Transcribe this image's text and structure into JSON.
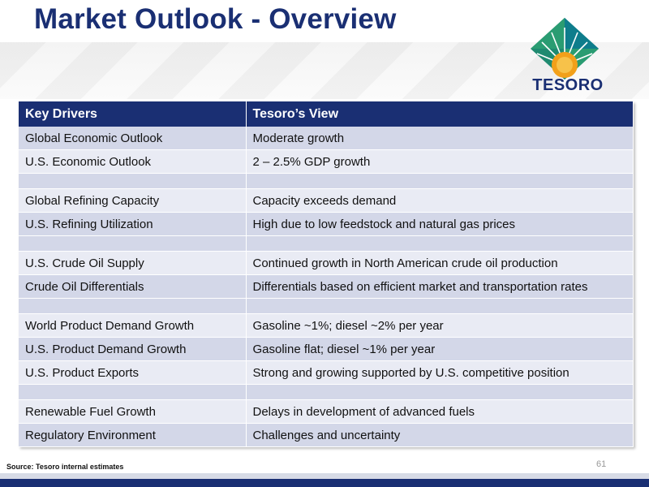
{
  "header": {
    "title": "Market Outlook - Overview",
    "logo_text": "TESORO"
  },
  "colors": {
    "brand_navy": "#1a2f73",
    "logo_green": "#1f8a70",
    "logo_teal": "#0e7d8c",
    "logo_sun": "#f2a01a"
  },
  "table": {
    "headers": [
      "Key Drivers",
      "Tesoro’s View"
    ],
    "rows": [
      {
        "driver": "Global Economic Outlook",
        "view": "Moderate growth"
      },
      {
        "driver": "U.S. Economic Outlook",
        "view": "2 – 2.5% GDP growth"
      },
      {
        "driver": "",
        "view": ""
      },
      {
        "driver": "Global Refining Capacity",
        "view": "Capacity exceeds demand"
      },
      {
        "driver": "U.S. Refining Utilization",
        "view": "High due to low feedstock and natural gas prices"
      },
      {
        "driver": "",
        "view": ""
      },
      {
        "driver": "U.S. Crude Oil Supply",
        "view": "Continued growth in North American crude oil production"
      },
      {
        "driver": "Crude Oil Differentials",
        "view": "Differentials based on efficient market and transportation rates"
      },
      {
        "driver": "",
        "view": ""
      },
      {
        "driver": "World Product Demand Growth",
        "view": "Gasoline ~1%; diesel ~2% per year"
      },
      {
        "driver": "U.S. Product Demand Growth",
        "view": "Gasoline flat; diesel ~1% per year"
      },
      {
        "driver": "U.S. Product Exports",
        "view": "Strong and growing supported by U.S. competitive position"
      },
      {
        "driver": "",
        "view": ""
      },
      {
        "driver": "Renewable Fuel Growth",
        "view": "Delays in development of advanced fuels"
      },
      {
        "driver": "Regulatory Environment",
        "view": "Challenges and uncertainty"
      }
    ]
  },
  "footer": {
    "source": "Source: Tesoro internal estimates",
    "page_number": "61"
  }
}
